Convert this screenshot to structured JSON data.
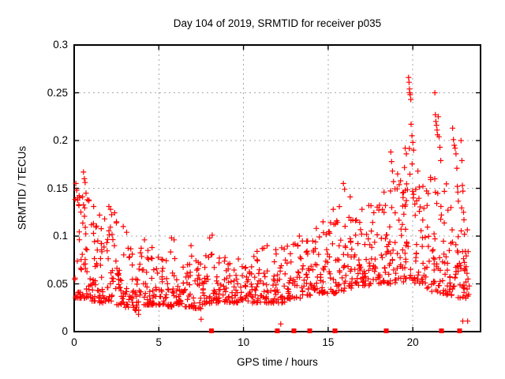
{
  "chart_data": {
    "type": "scatter",
    "title": "Day 104 of 2019, SRMTID for receiver p035",
    "xlabel": "GPS time / hours",
    "ylabel": "SRMTID / TECUs",
    "xlim": [
      0,
      24
    ],
    "ylim": [
      0,
      0.3
    ],
    "xticks": [
      0,
      5,
      10,
      15,
      20
    ],
    "xtick_labels": [
      "0",
      "5",
      "10",
      "15",
      "20"
    ],
    "yticks": [
      0,
      0.05,
      0.1,
      0.15,
      0.2,
      0.25,
      0.3
    ],
    "ytick_labels": [
      "0",
      "0.05",
      "0.1",
      "0.15",
      "0.2",
      "0.25",
      "0.3"
    ],
    "grid": true,
    "legend": "none",
    "colors": {
      "marker": "#ff0000",
      "grid": "#a8a8a8",
      "axis": "#000000",
      "background": "#ffffff",
      "text": "#000000"
    },
    "prng_seed": 104,
    "series": [
      {
        "name": "SRMTID",
        "marker": "plus",
        "color": "#ff0000",
        "points": [
          [
            0.1,
            0.155
          ],
          [
            0.15,
            0.148
          ],
          [
            0.2,
            0.14
          ],
          [
            0.28,
            0.132
          ],
          [
            0.55,
            0.167
          ],
          [
            0.6,
            0.16
          ],
          [
            0.65,
            0.156
          ],
          [
            0.7,
            0.145
          ],
          [
            0.78,
            0.138
          ],
          [
            1.15,
            0.131
          ],
          [
            1.5,
            0.122
          ],
          [
            1.8,
            0.118
          ],
          [
            2.05,
            0.131
          ],
          [
            2.15,
            0.128
          ],
          [
            2.5,
            0.115
          ],
          [
            2.9,
            0.11
          ],
          [
            3.1,
            0.104
          ],
          [
            3.8,
            0.018
          ],
          [
            4.15,
            0.096
          ],
          [
            4.6,
            0.088
          ],
          [
            5.75,
            0.098
          ],
          [
            5.9,
            0.096
          ],
          [
            6.9,
            0.09
          ],
          [
            7.5,
            0.013
          ],
          [
            8.0,
            0.098
          ],
          [
            8.15,
            0.101
          ],
          [
            9.7,
            0.076
          ],
          [
            10.8,
            0.084
          ],
          [
            11.4,
            0.09
          ],
          [
            12.2,
            0.008
          ],
          [
            13.3,
            0.1
          ],
          [
            14.3,
            0.108
          ],
          [
            14.7,
            0.115
          ],
          [
            15.3,
            0.128
          ],
          [
            15.9,
            0.155
          ],
          [
            15.97,
            0.149
          ],
          [
            16.3,
            0.141
          ],
          [
            17.0,
            0.128
          ],
          [
            17.4,
            0.132
          ],
          [
            18.3,
            0.146
          ],
          [
            18.7,
            0.188
          ],
          [
            18.75,
            0.178
          ],
          [
            18.8,
            0.168
          ],
          [
            18.86,
            0.157
          ],
          [
            19.1,
            0.165
          ],
          [
            19.55,
            0.192
          ],
          [
            19.62,
            0.186
          ],
          [
            19.75,
            0.266
          ],
          [
            19.78,
            0.261
          ],
          [
            19.8,
            0.254
          ],
          [
            19.82,
            0.25
          ],
          [
            19.85,
            0.248
          ],
          [
            19.88,
            0.243
          ],
          [
            19.9,
            0.217
          ],
          [
            19.95,
            0.205
          ],
          [
            20.0,
            0.198
          ],
          [
            20.05,
            0.19
          ],
          [
            20.3,
            0.168
          ],
          [
            20.6,
            0.152
          ],
          [
            21.3,
            0.25
          ],
          [
            21.33,
            0.227
          ],
          [
            21.36,
            0.22
          ],
          [
            21.4,
            0.216
          ],
          [
            21.43,
            0.211
          ],
          [
            21.46,
            0.206
          ],
          [
            21.5,
            0.225
          ],
          [
            21.55,
            0.204
          ],
          [
            21.6,
            0.193
          ],
          [
            21.65,
            0.179
          ],
          [
            22.35,
            0.213
          ],
          [
            22.4,
            0.201
          ],
          [
            22.45,
            0.195
          ],
          [
            22.5,
            0.192
          ],
          [
            22.55,
            0.186
          ],
          [
            22.6,
            0.171
          ],
          [
            22.63,
            0.152
          ],
          [
            22.66,
            0.146
          ],
          [
            22.85,
            0.2
          ],
          [
            22.9,
            0.179
          ],
          [
            22.93,
            0.153
          ],
          [
            22.96,
            0.147
          ],
          [
            23.0,
            0.125
          ],
          [
            23.02,
            0.117
          ],
          [
            23.05,
            0.102
          ],
          [
            22.95,
            0.011
          ],
          [
            23.24,
            0.011
          ],
          [
            23.1,
            0.084
          ],
          [
            23.15,
            0.068
          ],
          [
            23.2,
            0.061
          ],
          [
            23.26,
            0.055
          ],
          [
            23.3,
            0.039
          ]
        ],
        "density_clusters": [
          [
            0.0,
            0.5,
            30,
            0.035,
            0.15
          ],
          [
            0.5,
            1.0,
            28,
            0.035,
            0.14
          ],
          [
            1.0,
            1.5,
            27,
            0.032,
            0.12
          ],
          [
            1.5,
            2.0,
            26,
            0.03,
            0.11
          ],
          [
            2.0,
            2.5,
            25,
            0.03,
            0.125
          ],
          [
            2.5,
            3.0,
            25,
            0.028,
            0.1
          ],
          [
            3.0,
            3.5,
            24,
            0.025,
            0.095
          ],
          [
            3.5,
            4.0,
            24,
            0.022,
            0.088
          ],
          [
            4.0,
            4.5,
            23,
            0.028,
            0.09
          ],
          [
            4.5,
            5.0,
            23,
            0.028,
            0.082
          ],
          [
            5.0,
            5.5,
            22,
            0.028,
            0.078
          ],
          [
            5.5,
            6.0,
            22,
            0.026,
            0.085
          ],
          [
            6.0,
            6.5,
            22,
            0.028,
            0.078
          ],
          [
            6.5,
            7.0,
            22,
            0.026,
            0.08
          ],
          [
            7.0,
            7.5,
            22,
            0.024,
            0.078
          ],
          [
            7.5,
            8.0,
            22,
            0.028,
            0.082
          ],
          [
            8.0,
            8.5,
            22,
            0.03,
            0.085
          ],
          [
            8.5,
            9.0,
            22,
            0.03,
            0.078
          ],
          [
            9.0,
            9.5,
            22,
            0.03,
            0.072
          ],
          [
            9.5,
            10.0,
            22,
            0.03,
            0.072
          ],
          [
            10.0,
            10.5,
            22,
            0.032,
            0.078
          ],
          [
            10.5,
            11.0,
            22,
            0.03,
            0.082
          ],
          [
            11.0,
            11.5,
            22,
            0.03,
            0.088
          ],
          [
            11.5,
            12.0,
            22,
            0.03,
            0.092
          ],
          [
            12.0,
            12.5,
            22,
            0.03,
            0.088
          ],
          [
            12.5,
            13.0,
            22,
            0.034,
            0.092
          ],
          [
            13.0,
            13.5,
            22,
            0.035,
            0.096
          ],
          [
            13.5,
            14.0,
            22,
            0.038,
            0.1
          ],
          [
            14.0,
            14.5,
            22,
            0.04,
            0.105
          ],
          [
            14.5,
            15.0,
            22,
            0.04,
            0.112
          ],
          [
            15.0,
            15.5,
            23,
            0.04,
            0.12
          ],
          [
            15.5,
            16.0,
            23,
            0.042,
            0.132
          ],
          [
            16.0,
            16.5,
            23,
            0.045,
            0.12
          ],
          [
            16.5,
            17.0,
            23,
            0.048,
            0.122
          ],
          [
            17.0,
            17.5,
            23,
            0.048,
            0.126
          ],
          [
            17.5,
            18.0,
            23,
            0.05,
            0.132
          ],
          [
            18.0,
            18.5,
            24,
            0.05,
            0.14
          ],
          [
            18.5,
            19.0,
            24,
            0.05,
            0.15
          ],
          [
            19.0,
            19.5,
            24,
            0.052,
            0.16
          ],
          [
            19.5,
            20.0,
            26,
            0.055,
            0.2
          ],
          [
            20.0,
            20.5,
            25,
            0.05,
            0.16
          ],
          [
            20.5,
            21.0,
            24,
            0.045,
            0.15
          ],
          [
            21.0,
            21.5,
            24,
            0.042,
            0.17
          ],
          [
            21.5,
            22.0,
            24,
            0.04,
            0.16
          ],
          [
            22.0,
            22.5,
            24,
            0.038,
            0.15
          ],
          [
            22.5,
            23.0,
            24,
            0.035,
            0.14
          ],
          [
            23.0,
            23.35,
            16,
            0.035,
            0.11
          ]
        ]
      },
      {
        "name": "zero-value flags",
        "marker": "filled-square",
        "color": "#ff0000",
        "points": [
          [
            8.1,
            0
          ],
          [
            12.01,
            0
          ],
          [
            12.99,
            0
          ],
          [
            13.92,
            0
          ],
          [
            15.41,
            0
          ],
          [
            18.44,
            0
          ],
          [
            21.7,
            0
          ],
          [
            22.77,
            0
          ]
        ]
      }
    ]
  }
}
